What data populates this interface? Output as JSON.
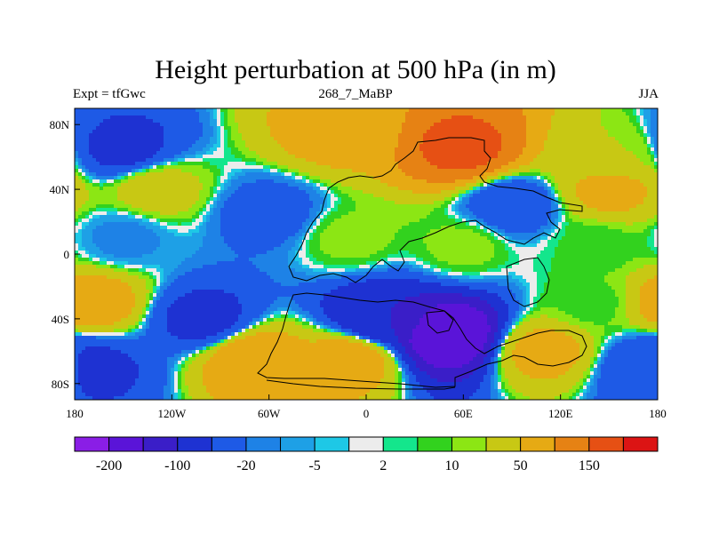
{
  "title": "Height perturbation at 500 hPa (in m)",
  "subtitle_left": "Expt = tfGwc",
  "subtitle_center": "268_7_MaBP",
  "subtitle_right": "JJA",
  "chart_data": {
    "type": "heatmap",
    "title": "Height perturbation at 500 hPa (in m)",
    "units": "m",
    "xlabel": "",
    "ylabel": "",
    "xlim": [
      -180,
      180
    ],
    "ylim": [
      -90,
      90
    ],
    "x_ticks": [
      {
        "value": -180,
        "label": "180"
      },
      {
        "value": -120,
        "label": "120W"
      },
      {
        "value": -60,
        "label": "60W"
      },
      {
        "value": 0,
        "label": "0"
      },
      {
        "value": 60,
        "label": "60E"
      },
      {
        "value": 120,
        "label": "120E"
      },
      {
        "value": 180,
        "label": "180"
      }
    ],
    "y_ticks": [
      {
        "value": 80,
        "label": "80N"
      },
      {
        "value": 40,
        "label": "40N"
      },
      {
        "value": 0,
        "label": "0"
      },
      {
        "value": -40,
        "label": "40S"
      },
      {
        "value": -80,
        "label": "80S"
      }
    ],
    "colorbar": {
      "levels": [
        -200,
        -150,
        -100,
        -50,
        -20,
        -10,
        -5,
        -2,
        2,
        5,
        10,
        20,
        50,
        100,
        150,
        200
      ],
      "labeled_levels": [
        {
          "value": -200,
          "label": "-200"
        },
        {
          "value": -100,
          "label": "-100"
        },
        {
          "value": -20,
          "label": "-20"
        },
        {
          "value": -5,
          "label": "-5"
        },
        {
          "value": 2,
          "label": "2"
        },
        {
          "value": 10,
          "label": "10"
        },
        {
          "value": 50,
          "label": "50"
        },
        {
          "value": 150,
          "label": "150"
        }
      ],
      "colors": [
        "#8a1ee6",
        "#5a14d8",
        "#3a1ec8",
        "#1e32d2",
        "#1e5ae6",
        "#1e82e6",
        "#1ea0e6",
        "#1ec8e6",
        "#ececec",
        "#14e68c",
        "#32d21e",
        "#8ce614",
        "#c8c814",
        "#e6aa14",
        "#e68214",
        "#e65014",
        "#dc1414"
      ]
    },
    "field_centers": [
      {
        "lon": -150,
        "lat": 65,
        "value": -60
      },
      {
        "lon": -20,
        "lat": 75,
        "value": 60
      },
      {
        "lon": 60,
        "lat": 65,
        "value": 160
      },
      {
        "lon": 150,
        "lat": 60,
        "value": 20
      },
      {
        "lon": 150,
        "lat": 40,
        "value": 60
      },
      {
        "lon": -130,
        "lat": 40,
        "value": 30
      },
      {
        "lon": -60,
        "lat": 25,
        "value": -30
      },
      {
        "lon": 90,
        "lat": 30,
        "value": -40
      },
      {
        "lon": -150,
        "lat": 10,
        "value": -12
      },
      {
        "lon": -10,
        "lat": 10,
        "value": 12
      },
      {
        "lon": 60,
        "lat": 5,
        "value": 12
      },
      {
        "lon": 140,
        "lat": 5,
        "value": 6
      },
      {
        "lon": -170,
        "lat": -30,
        "value": 70
      },
      {
        "lon": -100,
        "lat": -40,
        "value": -60
      },
      {
        "lon": -70,
        "lat": -65,
        "value": 80
      },
      {
        "lon": -10,
        "lat": -65,
        "value": 70
      },
      {
        "lon": 10,
        "lat": -40,
        "value": -100
      },
      {
        "lon": 50,
        "lat": -50,
        "value": -200
      },
      {
        "lon": 110,
        "lat": -60,
        "value": 60
      },
      {
        "lon": 140,
        "lat": -30,
        "value": 8
      },
      {
        "lon": -170,
        "lat": -70,
        "value": -60
      },
      {
        "lon": 175,
        "lat": -70,
        "value": -40
      }
    ]
  }
}
